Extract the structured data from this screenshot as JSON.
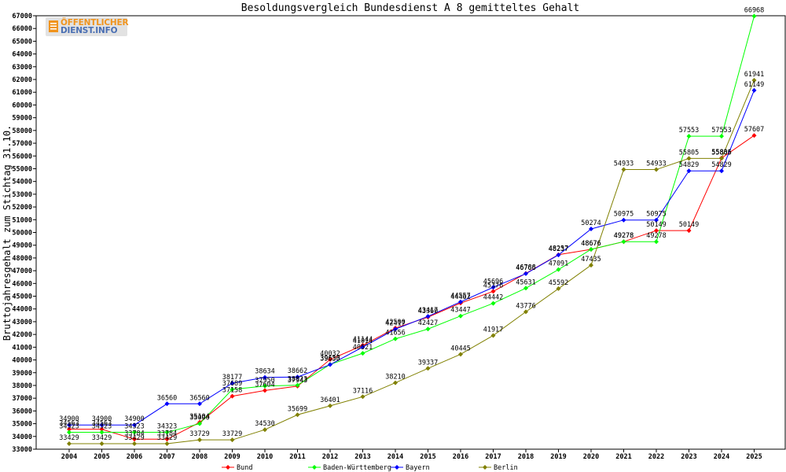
{
  "chart_data": {
    "type": "line",
    "title": "Besoldungsvergleich Bundesdienst A 8 gemitteltes Gehalt",
    "xlabel": "",
    "ylabel": "Bruttojahresgehalt zum Stichtag 31.10.",
    "ylim": [
      33000,
      67000
    ],
    "ytick_step": 1000,
    "grid": false,
    "legend_position": "bottom",
    "categories": [
      "2004",
      "2005",
      "2006",
      "2007",
      "2008",
      "2009",
      "2010",
      "2011",
      "2012",
      "2013",
      "2014",
      "2015",
      "2016",
      "2017",
      "2018",
      "2019",
      "2020",
      "2021",
      "2022",
      "2023",
      "2024",
      "2025"
    ],
    "series": [
      {
        "name": "Bund",
        "color": "#ff0000",
        "values": [
          34563,
          34563,
          33784,
          33784,
          35104,
          37158,
          37604,
          37943,
          40032,
          41144,
          42500,
          43360,
          44462,
          45376,
          46788,
          48257,
          48676,
          49278,
          50149,
          50149,
          55836,
          57607
        ]
      },
      {
        "name": "Baden-Württemberg",
        "color": "#00ff00",
        "values": [
          34323,
          34323,
          34323,
          34323,
          35000,
          37689,
          37950,
          38023,
          39653,
          40521,
          41656,
          42427,
          43447,
          44442,
          45631,
          47091,
          48676,
          49278,
          49278,
          57553,
          57553,
          66968
        ]
      },
      {
        "name": "Bayern",
        "color": "#0000ff",
        "values": [
          34900,
          34900,
          34900,
          36560,
          36560,
          38177,
          38634,
          38662,
          39630,
          41014,
          42417,
          43417,
          44557,
          45696,
          46766,
          48237,
          50274,
          50975,
          50975,
          54829,
          54829,
          61149
        ]
      },
      {
        "name": "Berlin",
        "color": "#808000",
        "values": [
          33429,
          33429,
          33429,
          33429,
          33729,
          33729,
          34530,
          35699,
          36401,
          37116,
          38210,
          39337,
          40445,
          41917,
          43776,
          45592,
          47435,
          54933,
          54933,
          55805,
          55805,
          61941
        ]
      }
    ]
  },
  "logo": {
    "line1": "ÖFFENTLICHER",
    "line2": "DIENST.INFO"
  }
}
